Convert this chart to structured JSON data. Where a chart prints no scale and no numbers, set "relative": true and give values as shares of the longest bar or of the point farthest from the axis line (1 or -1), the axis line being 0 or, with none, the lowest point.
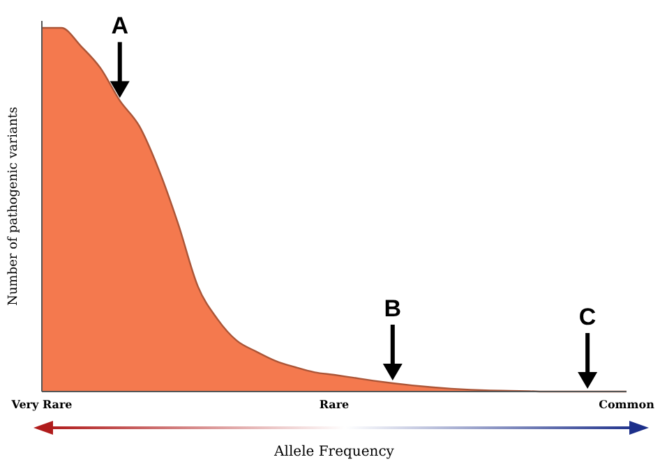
{
  "chart_data": {
    "type": "area",
    "relative": true,
    "xlabel": "Allele Frequency",
    "ylabel": "Number of pathogenic variants",
    "categories": [
      "Very Rare",
      null,
      null,
      null,
      null,
      null,
      null,
      null,
      null,
      null,
      null,
      null,
      null,
      null,
      null,
      "Rare",
      null,
      null,
      null,
      null,
      null,
      null,
      null,
      null,
      null,
      null,
      null,
      null,
      null,
      null,
      "Common"
    ],
    "series": [
      {
        "color": "#f4794e",
        "values": [
          1,
          1,
          0.95,
          0.89,
          0.8,
          0.73,
          0.61,
          0.46,
          0.29,
          0.2,
          0.14,
          0.11,
          0.084,
          0.067,
          0.053,
          0.046,
          0.038,
          0.03,
          0.023,
          0.017,
          0.012,
          0.008,
          0.005,
          0.003,
          0.002,
          0.001,
          0,
          0,
          0,
          0,
          0
        ]
      }
    ],
    "annotations": [
      {
        "text": "A",
        "y": 0.8
      },
      {
        "text": "B",
        "y": 0.023
      },
      {
        "text": "C",
        "y": 0
      }
    ]
  }
}
